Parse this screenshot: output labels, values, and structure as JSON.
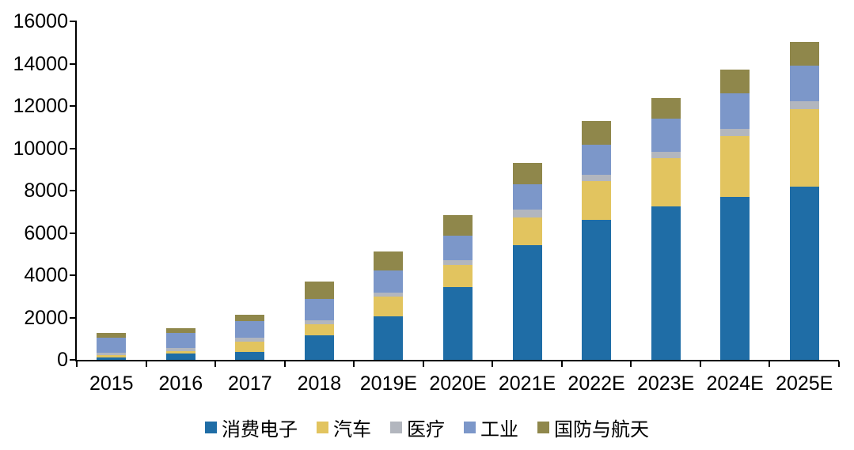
{
  "chart_data": {
    "type": "bar",
    "stacked": true,
    "title": "",
    "xlabel": "",
    "ylabel": "",
    "categories": [
      "2015",
      "2016",
      "2017",
      "2018",
      "2019E",
      "2020E",
      "2021E",
      "2022E",
      "2023E",
      "2024E",
      "2025E"
    ],
    "series": [
      {
        "name": "消费电子",
        "color": "#1F6DA6",
        "values": [
          100,
          300,
          370,
          1160,
          2060,
          3440,
          5420,
          6620,
          7260,
          7700,
          8190
        ]
      },
      {
        "name": "汽车",
        "color": "#E2C45F",
        "values": [
          110,
          110,
          490,
          520,
          940,
          1050,
          1310,
          1830,
          2280,
          2880,
          3670
        ]
      },
      {
        "name": "医疗",
        "color": "#B2B6BE",
        "values": [
          110,
          150,
          190,
          190,
          190,
          220,
          370,
          300,
          300,
          340,
          370
        ]
      },
      {
        "name": "工业",
        "color": "#7C97C9",
        "values": [
          730,
          710,
          790,
          1010,
          1050,
          1160,
          1200,
          1420,
          1570,
          1680,
          1680
        ]
      },
      {
        "name": "国防与航天",
        "color": "#8F874B",
        "values": [
          220,
          220,
          300,
          820,
          900,
          970,
          1010,
          1120,
          970,
          1120,
          1120
        ]
      }
    ],
    "totals": [
      1270,
      1490,
      2140,
      3700,
      5140,
      6840,
      9310,
      11290,
      12380,
      13720,
      15030
    ],
    "ylim": [
      0,
      16000
    ],
    "yticks": [
      0,
      2000,
      4000,
      6000,
      8000,
      10000,
      12000,
      14000,
      16000
    ],
    "grid": "off",
    "legend_position": "bottom",
    "axis_color": "#000000",
    "background": "#FFFFFF"
  }
}
